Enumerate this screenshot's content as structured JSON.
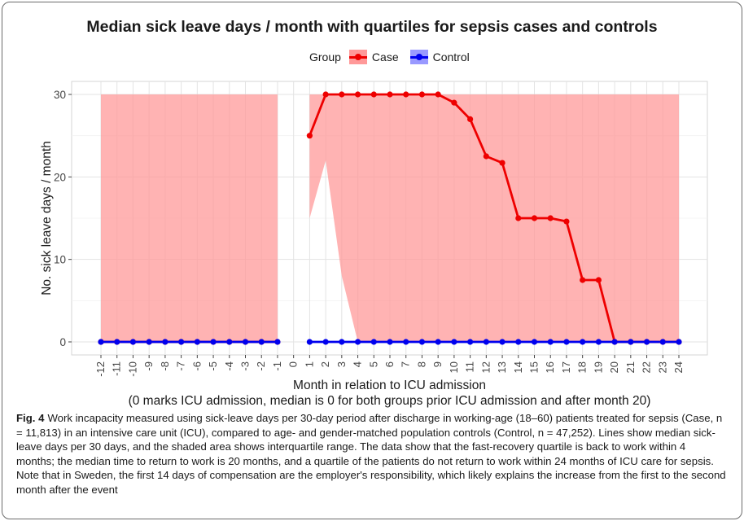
{
  "figure": {
    "caption_label": "Fig. 4",
    "caption_text": "Work incapacity measured using sick-leave days per 30-day period after discharge in working-age (18–60) patients treated for sepsis (Case, n = 11,813) in an intensive care unit (ICU), compared to age- and gender-matched population controls (Control, n = 47,252). Lines show median sick-leave days per 30 days, and the shaded area shows interquartile range. The data show that the fast-recovery quartile is back to work within 4 months; the median time to return to work is 20 months, and a quartile of the patients do not return to work within 24 months of ICU care for sepsis. Note that in Sweden, the first 14 days of compensation are the employer's responsibility, which likely explains the increase from the first to the second month after the event"
  },
  "chart_data": {
    "type": "line",
    "title": "Median sick leave days / month with quartiles for sepsis cases and controls",
    "xlabel": "Month in relation to ICU admission",
    "xlabel2": "(0 marks ICU admission, median is 0 for both groups prior ICU admission and after month 20)",
    "ylabel": "No. sick leave days / month",
    "legend_title": "Group",
    "legend_position": "top",
    "grid": true,
    "xlim": [
      -12,
      24
    ],
    "ylim": [
      0,
      30
    ],
    "yticks": [
      0,
      10,
      20,
      30
    ],
    "x_ticks": [
      -12,
      -11,
      -10,
      -9,
      -8,
      -7,
      -6,
      -5,
      -4,
      -3,
      -2,
      -1,
      0,
      1,
      2,
      3,
      4,
      5,
      6,
      7,
      8,
      9,
      10,
      11,
      12,
      13,
      14,
      15,
      16,
      17,
      18,
      19,
      20,
      21,
      22,
      23,
      24
    ],
    "series": [
      {
        "name": "Case",
        "color": "#ee0000",
        "band_color": "#ff9999",
        "x": [
          -12,
          -11,
          -10,
          -9,
          -8,
          -7,
          -6,
          -5,
          -4,
          -3,
          -2,
          -1,
          1,
          2,
          3,
          4,
          5,
          6,
          7,
          8,
          9,
          10,
          11,
          12,
          13,
          14,
          15,
          16,
          17,
          18,
          19,
          20,
          21,
          22,
          23,
          24
        ],
        "median": [
          0,
          0,
          0,
          0,
          0,
          0,
          0,
          0,
          0,
          0,
          0,
          0,
          25,
          30,
          30,
          30,
          30,
          30,
          30,
          30,
          30,
          29,
          27,
          22.5,
          21.7,
          15,
          15,
          15,
          14.6,
          7.5,
          7.5,
          0,
          0,
          0,
          0,
          0
        ],
        "q1": [
          0,
          0,
          0,
          0,
          0,
          0,
          0,
          0,
          0,
          0,
          0,
          0,
          15,
          22,
          8,
          0,
          0,
          0,
          0,
          0,
          0,
          0,
          0,
          0,
          0,
          0,
          0,
          0,
          0,
          0,
          0,
          0,
          0,
          0,
          0,
          0
        ],
        "q3": [
          30,
          30,
          30,
          30,
          30,
          30,
          30,
          30,
          30,
          30,
          30,
          30,
          30,
          30,
          30,
          30,
          30,
          30,
          30,
          30,
          30,
          30,
          30,
          30,
          30,
          30,
          30,
          30,
          30,
          30,
          30,
          30,
          30,
          30,
          30,
          30
        ]
      },
      {
        "name": "Control",
        "color": "#0000ee",
        "band_color": "#9999ff",
        "x": [
          -12,
          -11,
          -10,
          -9,
          -8,
          -7,
          -6,
          -5,
          -4,
          -3,
          -2,
          -1,
          1,
          2,
          3,
          4,
          5,
          6,
          7,
          8,
          9,
          10,
          11,
          12,
          13,
          14,
          15,
          16,
          17,
          18,
          19,
          20,
          21,
          22,
          23,
          24
        ],
        "median": [
          0,
          0,
          0,
          0,
          0,
          0,
          0,
          0,
          0,
          0,
          0,
          0,
          0,
          0,
          0,
          0,
          0,
          0,
          0,
          0,
          0,
          0,
          0,
          0,
          0,
          0,
          0,
          0,
          0,
          0,
          0,
          0,
          0,
          0,
          0,
          0
        ],
        "q1": [
          0,
          0,
          0,
          0,
          0,
          0,
          0,
          0,
          0,
          0,
          0,
          0,
          0,
          0,
          0,
          0,
          0,
          0,
          0,
          0,
          0,
          0,
          0,
          0,
          0,
          0,
          0,
          0,
          0,
          0,
          0,
          0,
          0,
          0,
          0,
          0
        ],
        "q3": [
          0,
          0,
          0,
          0,
          0,
          0,
          0,
          0,
          0,
          0,
          0,
          0,
          0,
          0,
          0,
          0,
          0,
          0,
          0,
          0,
          0,
          0,
          0,
          0,
          0,
          0,
          0,
          0,
          0,
          0,
          0,
          0,
          0,
          0,
          0,
          0
        ]
      }
    ]
  }
}
